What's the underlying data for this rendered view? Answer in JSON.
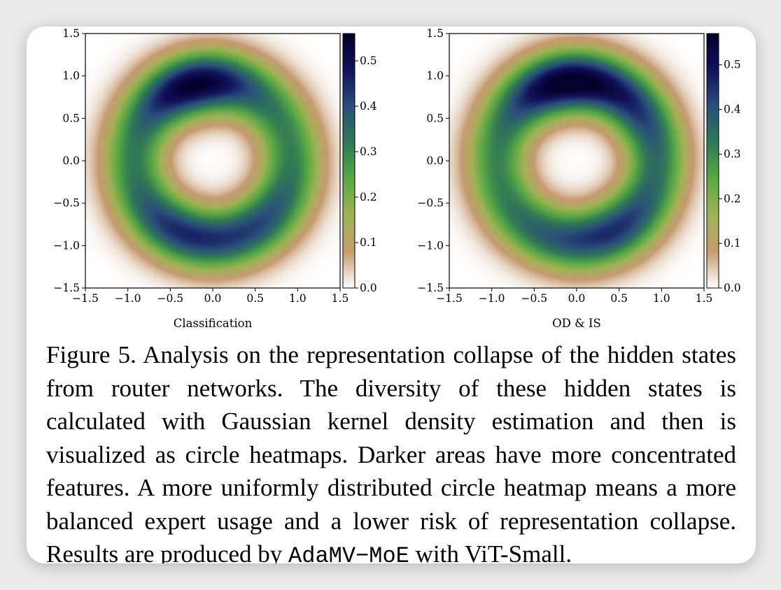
{
  "colors": {
    "colormap": [
      "#ffffff",
      "#c69a70",
      "#a0b255",
      "#5aa845",
      "#2f7a55",
      "#2a4f7a",
      "#12125c",
      "#03002a"
    ],
    "ring_inner_edge": "#ffffff",
    "frame": "#000000"
  },
  "chart_data": [
    {
      "type": "heatmap",
      "title": "",
      "xlabel": "Classification",
      "ylabel": "",
      "xlim": [
        -1.5,
        1.5
      ],
      "ylim": [
        -1.5,
        1.5
      ],
      "xticks": [
        "−1.5",
        "−1.0",
        "−0.5",
        "0.0",
        "0.5",
        "1.0",
        "1.5"
      ],
      "yticks": [
        "−1.5",
        "−1.0",
        "−0.5",
        "0.0",
        "0.5",
        "1.0",
        "1.5"
      ],
      "colorbar": {
        "min": 0.0,
        "max": 0.56,
        "ticks": [
          "0.0",
          "0.1",
          "0.2",
          "0.3",
          "0.4",
          "0.5"
        ]
      },
      "ring_radius": 0.92,
      "hotspots": [
        {
          "angle_deg": 103,
          "density": 0.56
        },
        {
          "angle_deg": 245,
          "density": 0.44
        },
        {
          "angle_deg": 305,
          "density": 0.4
        }
      ]
    },
    {
      "type": "heatmap",
      "title": "",
      "xlabel": "OD & IS",
      "ylabel": "",
      "xlim": [
        -1.5,
        1.5
      ],
      "ylim": [
        -1.5,
        1.5
      ],
      "xticks": [
        "−1.5",
        "−1.0",
        "−0.5",
        "0.0",
        "0.5",
        "1.0",
        "1.5"
      ],
      "yticks": [
        "−1.5",
        "−1.0",
        "−0.5",
        "0.0",
        "0.5",
        "1.0",
        "1.5"
      ],
      "colorbar": {
        "min": 0.0,
        "max": 0.57,
        "ticks": [
          "0.0",
          "0.1",
          "0.2",
          "0.3",
          "0.4",
          "0.5"
        ]
      },
      "ring_radius": 0.93,
      "hotspots": [
        {
          "angle_deg": 100,
          "density": 0.57
        },
        {
          "angle_deg": 45,
          "density": 0.42
        },
        {
          "angle_deg": 300,
          "density": 0.44
        },
        {
          "angle_deg": 250,
          "density": 0.36
        }
      ]
    }
  ],
  "caption": {
    "number": "Figure 5.",
    "text": "Analysis on the representation collapse of the hidden states from router networks. The diversity of these hidden states is calculated with Gaussian kernel density estimation and then is visualized as circle heatmaps. Darker areas have more concentrated features.  A more uniformly distributed circle heatmap means a more balanced expert usage and a lower risk of representation collapse. Results are produced by",
    "code": "AdaMV−MoE",
    "tail": "with ViT-Small."
  }
}
